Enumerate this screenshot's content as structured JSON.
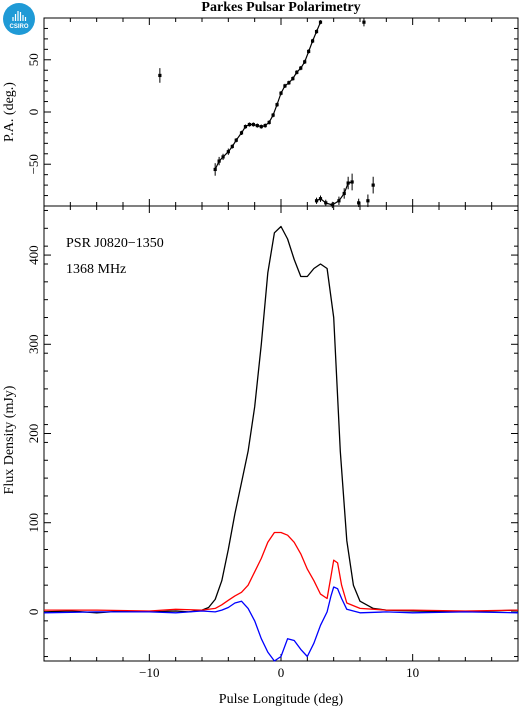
{
  "header": {
    "title": "Parkes Pulsar Polarimetry",
    "logo_text": "CSIRO",
    "logo_color": "#1f9ad6"
  },
  "chart_data": [
    {
      "type": "scatter",
      "panel": "position-angle",
      "ylabel": "P.A. (deg.)",
      "xlabel": "",
      "ylim": [
        -90,
        90
      ],
      "xlim": [
        -18,
        18
      ],
      "yticks": [
        -50,
        0,
        50
      ],
      "xticks": [
        -10,
        0,
        10
      ],
      "show_x_ticklabels": false,
      "grid": false,
      "series": [
        {
          "color": "#000000",
          "points": [
            {
              "x": -9.2,
              "y": 35,
              "err": 7
            },
            {
              "x": -5.0,
              "y": -55,
              "err": 6
            },
            {
              "x": -4.7,
              "y": -47,
              "err": 4
            },
            {
              "x": -4.4,
              "y": -43,
              "err": 3
            },
            {
              "x": -4.0,
              "y": -38,
              "err": 3
            },
            {
              "x": -3.7,
              "y": -33,
              "err": 2
            },
            {
              "x": -3.4,
              "y": -27,
              "err": 2
            },
            {
              "x": -3.0,
              "y": -20,
              "err": 2
            },
            {
              "x": -2.7,
              "y": -14,
              "err": 2
            },
            {
              "x": -2.4,
              "y": -12,
              "err": 2
            },
            {
              "x": -2.1,
              "y": -12,
              "err": 2
            },
            {
              "x": -1.8,
              "y": -13,
              "err": 2
            },
            {
              "x": -1.5,
              "y": -14,
              "err": 2
            },
            {
              "x": -1.2,
              "y": -13,
              "err": 2
            },
            {
              "x": -0.9,
              "y": -10,
              "err": 2
            },
            {
              "x": -0.6,
              "y": -3,
              "err": 2
            },
            {
              "x": -0.3,
              "y": 7,
              "err": 2
            },
            {
              "x": 0.0,
              "y": 18,
              "err": 2
            },
            {
              "x": 0.3,
              "y": 25,
              "err": 2
            },
            {
              "x": 0.6,
              "y": 28,
              "err": 2
            },
            {
              "x": 0.9,
              "y": 32,
              "err": 2
            },
            {
              "x": 1.2,
              "y": 38,
              "err": 2
            },
            {
              "x": 1.5,
              "y": 42,
              "err": 2
            },
            {
              "x": 1.8,
              "y": 48,
              "err": 2
            },
            {
              "x": 2.1,
              "y": 58,
              "err": 2
            },
            {
              "x": 2.4,
              "y": 68,
              "err": 2
            },
            {
              "x": 2.7,
              "y": 77,
              "err": 2
            },
            {
              "x": 3.0,
              "y": 86,
              "err": 2
            },
            {
              "x": 6.3,
              "y": 86,
              "err": 4
            },
            {
              "x": 2.7,
              "y": -85,
              "err": 3
            },
            {
              "x": 3.0,
              "y": -83,
              "err": 3
            },
            {
              "x": 3.4,
              "y": -87,
              "err": 3
            },
            {
              "x": 3.9,
              "y": -89,
              "err": 3
            },
            {
              "x": 4.4,
              "y": -85,
              "err": 4
            },
            {
              "x": 4.8,
              "y": -78,
              "err": 5
            },
            {
              "x": 5.1,
              "y": -68,
              "err": 6
            },
            {
              "x": 5.4,
              "y": -67,
              "err": 8
            },
            {
              "x": 5.9,
              "y": -87,
              "err": 4
            },
            {
              "x": 6.6,
              "y": -85,
              "err": 6
            },
            {
              "x": 7.0,
              "y": -70,
              "err": 8
            }
          ],
          "lines": [
            {
              "xs": [
                -5.0,
                -4.7,
                -4.4,
                -4.0,
                -3.7,
                -3.4,
                -3.0,
                -2.7,
                -2.4,
                -2.1,
                -1.8,
                -1.5,
                -1.2,
                -0.9,
                -0.6,
                -0.3,
                0.0,
                0.3,
                0.6,
                0.9,
                1.2,
                1.5,
                1.8,
                2.1,
                2.4,
                2.7,
                3.0
              ],
              "ys": [
                -55,
                -47,
                -43,
                -38,
                -33,
                -27,
                -20,
                -14,
                -12,
                -12,
                -13,
                -14,
                -13,
                -10,
                -3,
                7,
                18,
                25,
                28,
                32,
                38,
                42,
                48,
                58,
                68,
                77,
                86
              ]
            },
            {
              "xs": [
                2.7,
                3.0,
                3.4,
                3.9,
                4.4,
                4.8,
                5.1,
                5.4
              ],
              "ys": [
                -85,
                -83,
                -87,
                -89,
                -85,
                -78,
                -68,
                -67
              ]
            }
          ]
        }
      ]
    },
    {
      "type": "line",
      "panel": "flux-density",
      "xlabel": "Pulse Longitude (deg)",
      "ylabel": "Flux Density (mJy)",
      "xlim": [
        -18,
        18
      ],
      "ylim": [
        -55,
        455
      ],
      "xticks": [
        -10,
        0,
        10
      ],
      "yticks": [
        0,
        100,
        200,
        300,
        400
      ],
      "grid": false,
      "annotations": [
        "PSR J0820−1350",
        "1368 MHz"
      ],
      "series": [
        {
          "color": "#000000",
          "x": [
            -18,
            -16,
            -14,
            -12,
            -10,
            -8,
            -7,
            -6,
            -5.5,
            -5,
            -4.5,
            -4,
            -3.5,
            -3,
            -2.5,
            -2,
            -1.5,
            -1,
            -0.5,
            0,
            0.5,
            1,
            1.5,
            2,
            2.5,
            3,
            3.5,
            4,
            4.5,
            5,
            5.5,
            6,
            7,
            8,
            10,
            14,
            18
          ],
          "values": [
            0,
            1,
            -1,
            1,
            0,
            1,
            0,
            2,
            5,
            14,
            35,
            70,
            110,
            145,
            180,
            230,
            300,
            380,
            425,
            432,
            418,
            395,
            376,
            376,
            385,
            390,
            385,
            330,
            180,
            80,
            30,
            12,
            4,
            2,
            1,
            0,
            2
          ]
        },
        {
          "color": "#ff0000",
          "x": [
            -18,
            -14,
            -10,
            -8,
            -6,
            -5,
            -4.5,
            -4,
            -3.5,
            -3,
            -2.5,
            -2,
            -1.5,
            -1,
            -0.5,
            0,
            0.5,
            1,
            1.5,
            2,
            2.5,
            3,
            3.5,
            3.8,
            4,
            4.3,
            4.6,
            5,
            6,
            8,
            10,
            14,
            18
          ],
          "values": [
            2,
            2,
            1,
            3,
            2,
            4,
            8,
            13,
            18,
            22,
            30,
            45,
            60,
            78,
            89,
            89,
            86,
            78,
            65,
            48,
            35,
            20,
            15,
            40,
            58,
            55,
            30,
            10,
            4,
            2,
            2,
            1,
            2
          ]
        },
        {
          "color": "#0000ff",
          "x": [
            -18,
            -14,
            -10,
            -8,
            -6,
            -5,
            -4.5,
            -4,
            -3.5,
            -3,
            -2.5,
            -2,
            -1.5,
            -1,
            -0.5,
            0,
            0.5,
            1,
            1.5,
            2,
            2.5,
            3,
            3.5,
            3.8,
            4,
            4.3,
            4.6,
            5,
            6,
            8,
            10,
            14,
            18
          ],
          "values": [
            -1,
            0,
            0,
            -1,
            1,
            0,
            2,
            5,
            10,
            12,
            4,
            -10,
            -30,
            -45,
            -55,
            -50,
            -30,
            -32,
            -42,
            -50,
            -35,
            -15,
            0,
            18,
            28,
            26,
            15,
            3,
            -1,
            0,
            -1,
            0,
            -1
          ]
        }
      ]
    }
  ]
}
